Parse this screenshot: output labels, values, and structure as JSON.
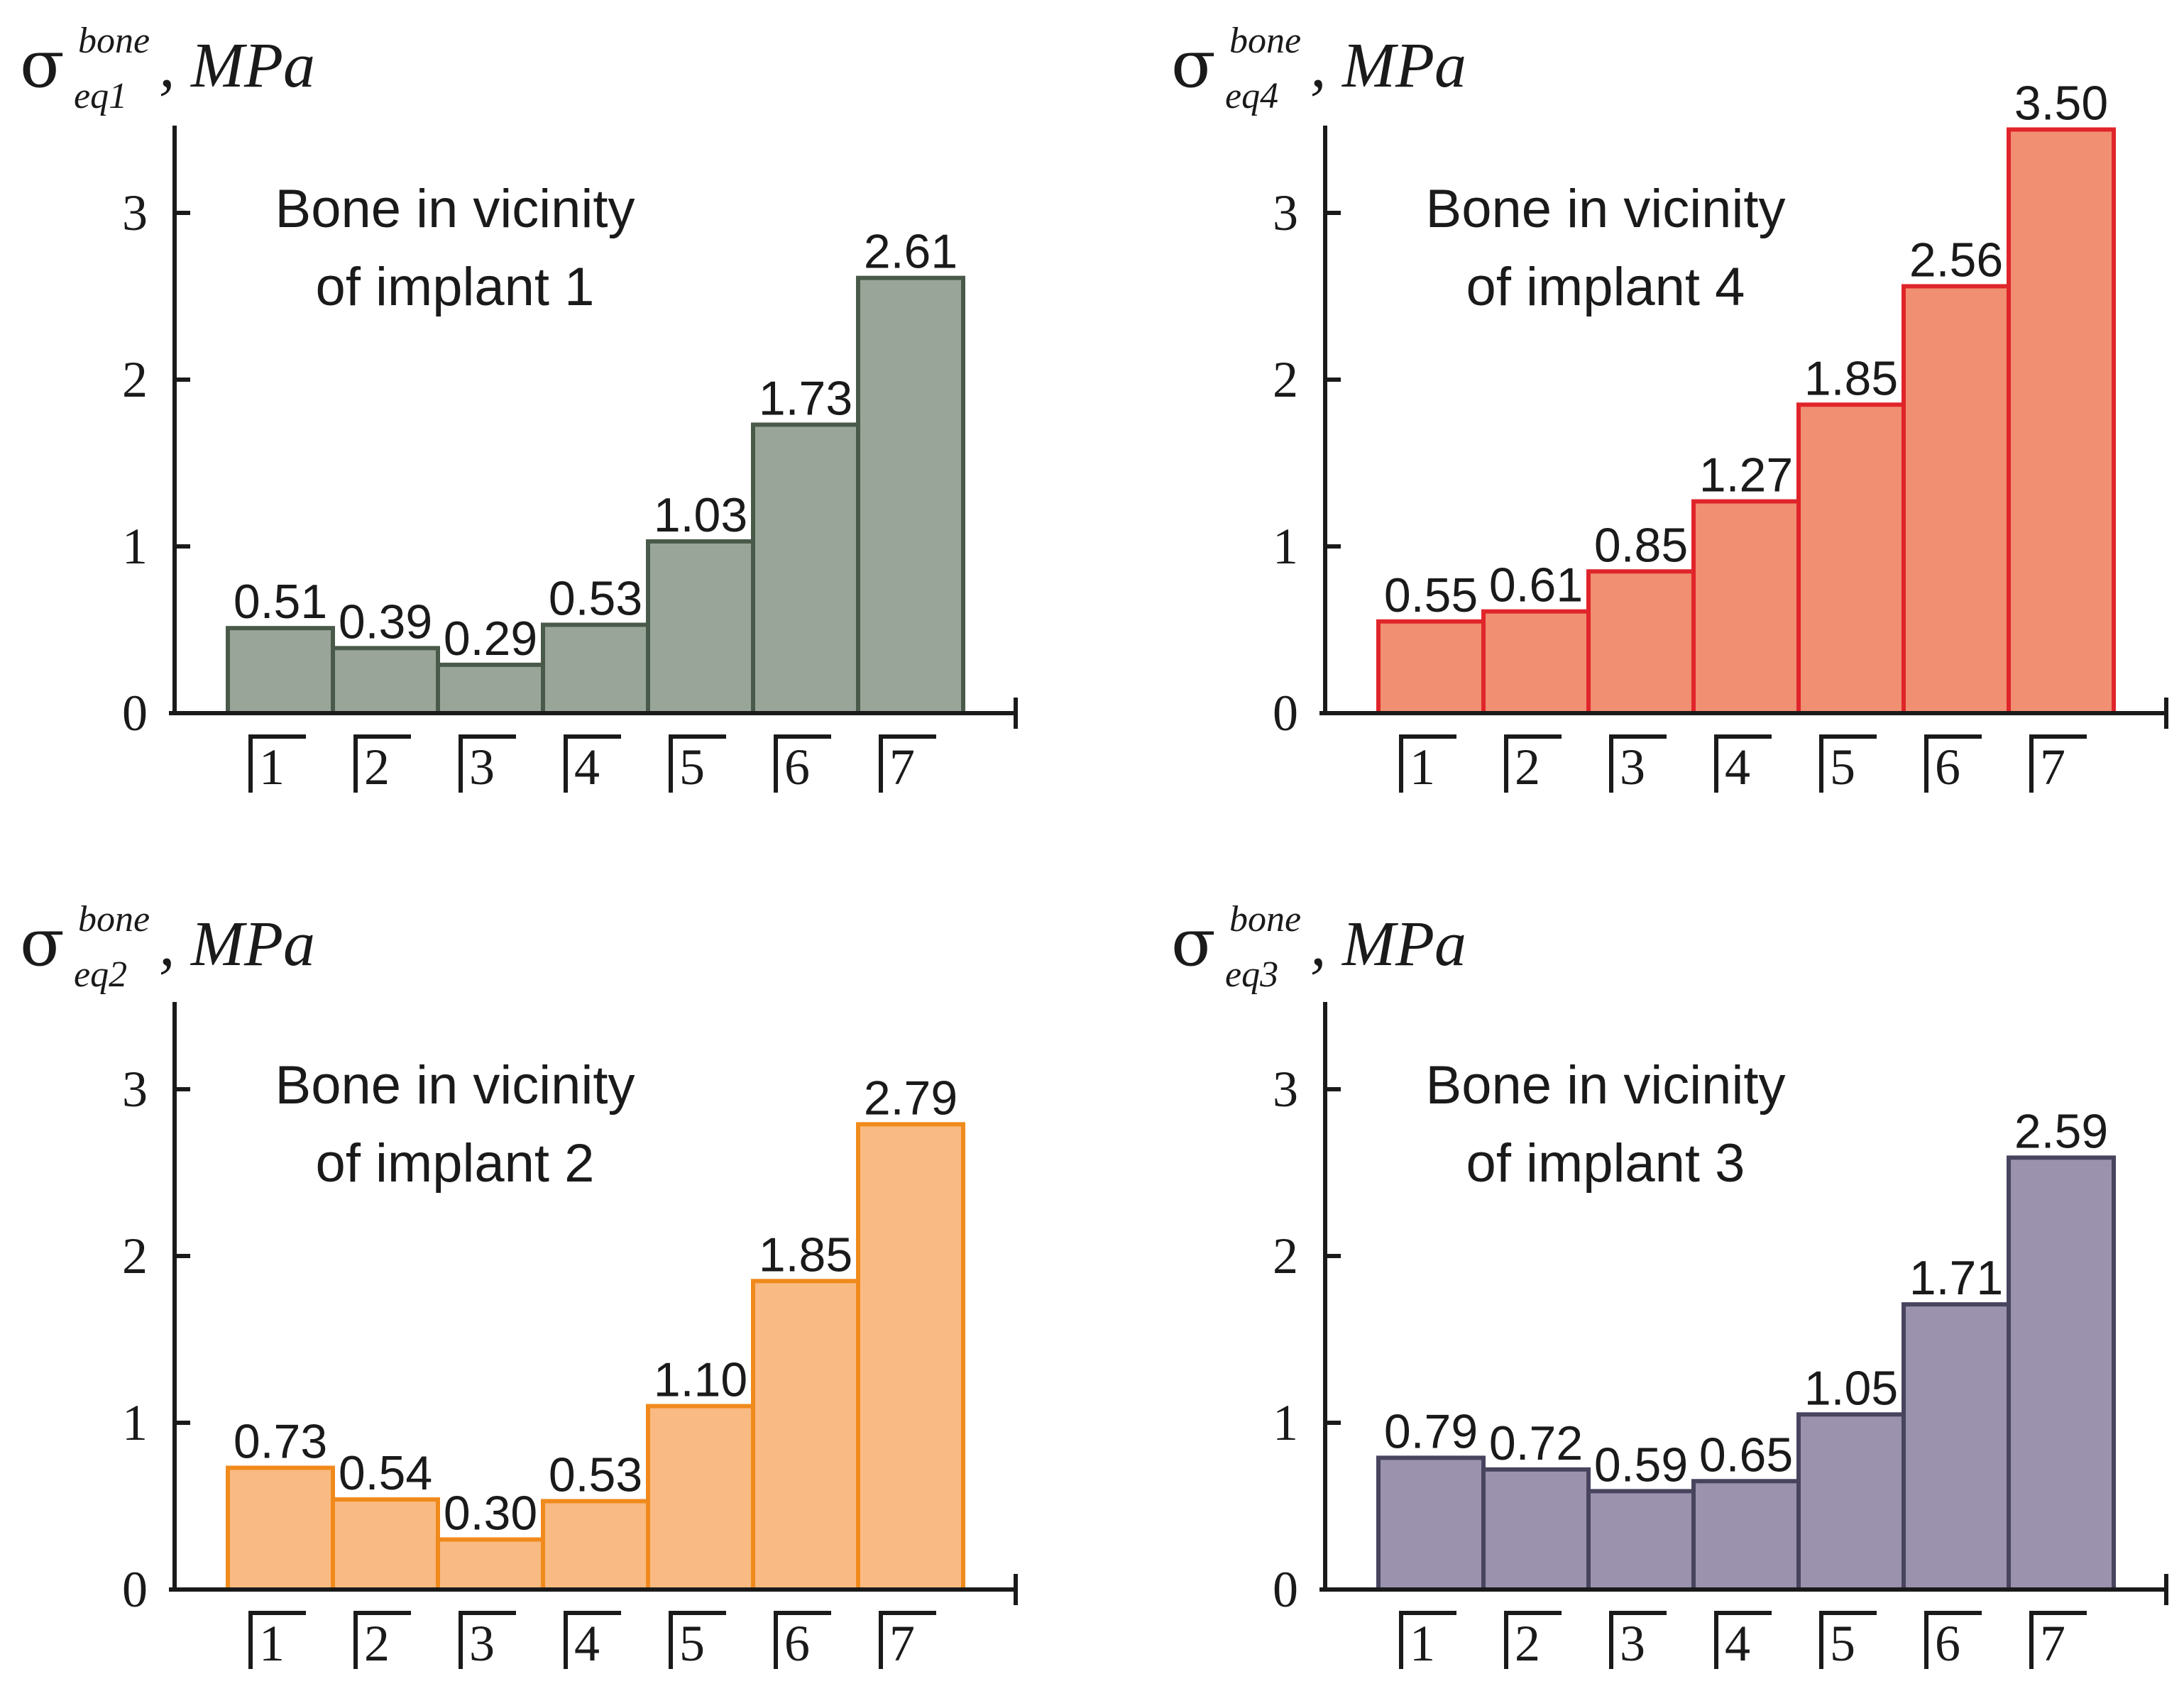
{
  "chart_data": [
    {
      "type": "bar",
      "panel": "top-left",
      "title_lines": [
        "Bone in vicinity",
        "of implant 1"
      ],
      "ylabel": {
        "symbol": "σ",
        "superscript": "bone",
        "subscript": "eq1",
        "unit": ", MPa"
      },
      "categories": [
        "1",
        "2",
        "3",
        "4",
        "5",
        "6",
        "7"
      ],
      "values": [
        0.51,
        0.39,
        0.29,
        0.53,
        1.03,
        1.73,
        2.61
      ],
      "value_labels": [
        "0.51",
        "0.39",
        "0.29",
        "0.53",
        "1.03",
        "1.73",
        "2.61"
      ],
      "yticks": [
        "0",
        "1",
        "2",
        "3"
      ],
      "ylim": [
        0,
        3.5
      ],
      "fill": "#9aa59a",
      "stroke": "#4a5a4a"
    },
    {
      "type": "bar",
      "panel": "top-right",
      "title_lines": [
        "Bone in vicinity",
        "of implant 4"
      ],
      "ylabel": {
        "symbol": "σ",
        "superscript": "bone",
        "subscript": "eq4",
        "unit": ", MPa"
      },
      "categories": [
        "1",
        "2",
        "3",
        "4",
        "5",
        "6",
        "7"
      ],
      "values": [
        0.55,
        0.61,
        0.85,
        1.27,
        1.85,
        2.56,
        3.5
      ],
      "value_labels": [
        "0.55",
        "0.61",
        "0.85",
        "1.27",
        "1.85",
        "2.56",
        "3.50"
      ],
      "yticks": [
        "0",
        "1",
        "2",
        "3"
      ],
      "ylim": [
        0,
        3.5
      ],
      "fill": "#f08f72",
      "stroke": "#e0252a"
    },
    {
      "type": "bar",
      "panel": "bottom-left",
      "title_lines": [
        "Bone in vicinity",
        "of implant 2"
      ],
      "ylabel": {
        "symbol": "σ",
        "superscript": "bone",
        "subscript": "eq2",
        "unit": ", MPa"
      },
      "categories": [
        "1",
        "2",
        "3",
        "4",
        "5",
        "6",
        "7"
      ],
      "values": [
        0.73,
        0.54,
        0.3,
        0.53,
        1.1,
        1.85,
        2.79
      ],
      "value_labels": [
        "0.73",
        "0.54",
        "0.30",
        "0.53",
        "1.10",
        "1.85",
        "2.79"
      ],
      "yticks": [
        "0",
        "1",
        "2",
        "3"
      ],
      "ylim": [
        0,
        3.5
      ],
      "fill": "#f9bb83",
      "stroke": "#f08a1c"
    },
    {
      "type": "bar",
      "panel": "bottom-right",
      "title_lines": [
        "Bone in vicinity",
        "of implant 3"
      ],
      "ylabel": {
        "symbol": "σ",
        "superscript": "bone",
        "subscript": "eq3",
        "unit": ", MPa"
      },
      "categories": [
        "1",
        "2",
        "3",
        "4",
        "5",
        "6",
        "7"
      ],
      "values": [
        0.79,
        0.72,
        0.59,
        0.65,
        1.05,
        1.71,
        2.59
      ],
      "value_labels": [
        "0.79",
        "0.72",
        "0.59",
        "0.65",
        "1.05",
        "1.71",
        "2.59"
      ],
      "yticks": [
        "0",
        "1",
        "2",
        "3"
      ],
      "ylim": [
        0,
        3.5
      ],
      "fill": "#9b92ad",
      "stroke": "#48445e"
    }
  ]
}
